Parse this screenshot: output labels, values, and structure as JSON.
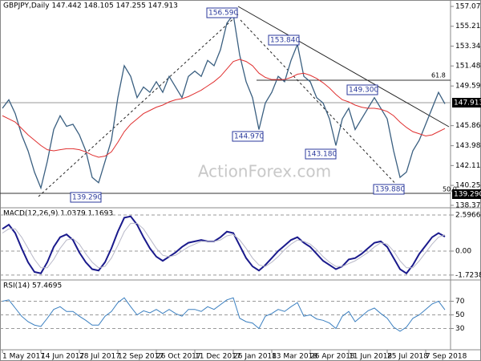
{
  "chart_data": [
    {
      "type": "line",
      "title": "GBPJPY,Daily 147.442 148.105 147.255 147.913",
      "watermark": "ActionForex.com",
      "ylim": [
        138.22,
        157.68
      ],
      "yticks": [
        157.075,
        {
          "value": 155.21,
          "label": "155.210"
        },
        153.345,
        {
          "value": 151.48,
          "label": "151.480"
        },
        149.595,
        145.865,
        {
          "value": 143.98,
          "label": "143.980"
        },
        142.115,
        {
          "value": 140.25,
          "label": "140.250"
        },
        138.375
      ],
      "series": [
        {
          "color": "#3a5f80",
          "values": [
            147.5,
            148.3,
            147.0,
            145.0,
            143.5,
            141.5,
            140.0,
            142.5,
            145.5,
            146.8,
            145.8,
            146.0,
            145.0,
            143.5,
            141.0,
            140.5,
            142.5,
            144.5,
            148.5,
            151.5,
            150.5,
            148.5,
            149.5,
            149.0,
            150.0,
            149.0,
            150.5,
            149.5,
            148.5,
            150.5,
            151.0,
            150.5,
            152.0,
            151.5,
            153.0,
            155.5,
            156.3,
            152.5,
            150.0,
            148.5,
            145.5,
            148.0,
            149.0,
            150.5,
            150.0,
            152.0,
            153.5,
            150.5,
            150.0,
            148.5,
            148.0,
            146.5,
            144.0,
            146.5,
            147.5,
            145.5,
            146.5,
            147.5,
            148.5,
            147.5,
            146.5,
            143.5,
            141.0,
            141.5,
            143.5,
            144.5,
            146.0,
            147.5,
            149.0,
            147.913
          ]
        },
        {
          "color": "#e03030",
          "values": [
            146.8,
            146.5,
            146.2,
            145.6,
            145.0,
            144.5,
            144.0,
            143.6,
            143.5,
            143.6,
            143.7,
            143.7,
            143.6,
            143.4,
            143.1,
            142.9,
            143.0,
            143.4,
            144.3,
            145.3,
            146.0,
            146.5,
            147.0,
            147.3,
            147.6,
            147.8,
            148.1,
            148.3,
            148.4,
            148.6,
            148.9,
            149.2,
            149.6,
            150.0,
            150.5,
            151.2,
            151.9,
            152.1,
            151.9,
            151.5,
            150.8,
            150.4,
            150.2,
            150.2,
            150.2,
            150.4,
            150.7,
            150.8,
            150.6,
            150.3,
            149.9,
            149.4,
            148.8,
            148.3,
            148.1,
            147.8,
            147.6,
            147.5,
            147.5,
            147.4,
            147.2,
            146.8,
            146.2,
            145.7,
            145.3,
            145.1,
            144.9,
            145.0,
            145.3,
            145.6
          ]
        }
      ],
      "annotations": [
        "156.590",
        "153.840",
        "149.300",
        "144.970",
        "143.180",
        "139.880",
        "139.290"
      ],
      "fib_labels": [
        "61.8",
        "50.0"
      ],
      "price_labels": [
        "147.913",
        "139.290"
      ]
    },
    {
      "type": "line",
      "title": "MACD(12,26,9) 1.0379 1.1693",
      "ylim": [
        -2.02,
        3.06
      ],
      "yticks": [
        2.5966,
        {
          "value": 0,
          "label": "0.00"
        },
        -1.7238
      ],
      "series": [
        {
          "color": "#1a1a8c",
          "values": [
            1.6,
            1.9,
            1.3,
            0.2,
            -0.8,
            -1.5,
            -1.6,
            -0.8,
            0.3,
            1.0,
            1.2,
            0.8,
            -0.1,
            -0.8,
            -1.3,
            -1.4,
            -0.8,
            0.2,
            1.4,
            2.4,
            2.5,
            1.9,
            1.0,
            0.2,
            -0.4,
            -0.7,
            -0.4,
            -0.1,
            0.3,
            0.6,
            0.7,
            0.8,
            0.7,
            0.7,
            1.0,
            1.4,
            1.3,
            0.4,
            -0.5,
            -1.1,
            -1.4,
            -1.0,
            -0.5,
            0.0,
            0.4,
            0.8,
            1.0,
            0.6,
            0.3,
            -0.2,
            -0.7,
            -1.0,
            -1.3,
            -1.1,
            -0.6,
            -0.5,
            -0.2,
            0.2,
            0.6,
            0.7,
            0.3,
            -0.5,
            -1.3,
            -1.6,
            -1.0,
            -0.2,
            0.4,
            1.0,
            1.3,
            1.0379
          ]
        },
        {
          "color": "#b8b8c8",
          "values": [
            1.3,
            1.6,
            1.6,
            1.0,
            0.2,
            -0.6,
            -1.2,
            -1.2,
            -0.6,
            0.2,
            0.8,
            0.9,
            0.5,
            -0.2,
            -0.8,
            -1.2,
            -1.1,
            -0.5,
            0.4,
            1.4,
            2.0,
            2.0,
            1.6,
            0.9,
            0.2,
            -0.3,
            -0.4,
            -0.3,
            0.0,
            0.3,
            0.5,
            0.7,
            0.7,
            0.7,
            0.8,
            1.1,
            1.2,
            0.8,
            0.2,
            -0.5,
            -1.0,
            -1.1,
            -0.8,
            -0.4,
            0.1,
            0.5,
            0.8,
            0.7,
            0.5,
            0.1,
            -0.4,
            -0.8,
            -1.1,
            -1.1,
            -0.9,
            -0.7,
            -0.4,
            -0.1,
            0.3,
            0.6,
            0.5,
            0.0,
            -0.7,
            -1.2,
            -1.2,
            -0.7,
            -0.1,
            0.5,
            1.0,
            1.1693
          ]
        }
      ]
    },
    {
      "type": "line",
      "title": "RSI(14) 57.4695",
      "ylim": [
        0,
        100
      ],
      "yticks": [
        70,
        50,
        30
      ],
      "categories": [
        "1 May 2017",
        null,
        null,
        null,
        null,
        null,
        "14 Jun 2017",
        null,
        null,
        null,
        null,
        null,
        "28 Jul 2017",
        null,
        null,
        null,
        null,
        null,
        "12 Sep 2017",
        null,
        null,
        null,
        null,
        null,
        "26 Oct 2017",
        null,
        null,
        null,
        null,
        null,
        "11 Dec 2017",
        null,
        null,
        null,
        null,
        null,
        "26 Jan 2018",
        null,
        null,
        null,
        null,
        null,
        "13 Mar 2018",
        null,
        null,
        null,
        null,
        null,
        "26 Apr 2018",
        null,
        null,
        null,
        null,
        null,
        "11 Jun 2018",
        null,
        null,
        null,
        null,
        null,
        "25 Jul 2018",
        null,
        null,
        null,
        null,
        null,
        "7 Sep 2018",
        null,
        null,
        null
      ],
      "series": [
        {
          "color": "#3a7fc0",
          "values": [
            70,
            72,
            60,
            48,
            40,
            35,
            33,
            45,
            58,
            62,
            55,
            55,
            48,
            42,
            35,
            35,
            48,
            55,
            68,
            75,
            62,
            50,
            56,
            53,
            58,
            52,
            58,
            52,
            48,
            58,
            58,
            55,
            62,
            58,
            65,
            72,
            75,
            45,
            40,
            38,
            30,
            48,
            52,
            58,
            55,
            62,
            68,
            48,
            50,
            44,
            42,
            38,
            30,
            48,
            55,
            40,
            48,
            56,
            60,
            52,
            45,
            32,
            26,
            32,
            45,
            50,
            58,
            66,
            70,
            57.4695
          ]
        }
      ]
    }
  ]
}
